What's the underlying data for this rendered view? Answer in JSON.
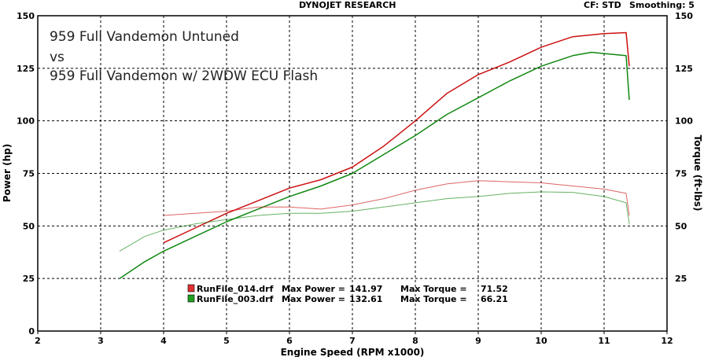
{
  "header": {
    "title": "DYNOJET RESEARCH",
    "cf_label": "CF: STD",
    "smoothing_label": "Smoothing: 5"
  },
  "chart_data": {
    "type": "line",
    "xlabel": "Engine Speed (RPM x1000)",
    "ylabel_left": "Power (hp)",
    "ylabel_right": "Torque (ft-lbs)",
    "xlim": [
      2,
      12
    ],
    "ylim": [
      0,
      150
    ],
    "x_ticks": [
      2,
      3,
      4,
      5,
      6,
      7,
      8,
      9,
      10,
      11,
      12
    ],
    "y_ticks": [
      0,
      25,
      50,
      75,
      100,
      125,
      150
    ],
    "y_ticks_right": [
      25,
      50,
      75,
      100,
      125,
      150
    ],
    "grid": true,
    "annotations": [
      "959 Full Vandemon Untuned",
      "vs",
      "959 Full Vandemon w/ 2WDW ECU Flash"
    ],
    "legend": [
      {
        "file": "RunFile_014.drf",
        "max_power_label": "Max Power =",
        "max_power": "141.97",
        "max_torque_label": "Max Torque =",
        "max_torque": "71.52",
        "color": "#cc1111"
      },
      {
        "file": "RunFile_003.drf",
        "max_power_label": "Max Power =",
        "max_power": "132.61",
        "max_torque_label": "Max Torque =",
        "max_torque": "66.21",
        "color": "#118811"
      }
    ],
    "series": [
      {
        "kind": "power",
        "run": 0,
        "color": "#cc1111",
        "x": [
          4.0,
          4.5,
          5.0,
          5.5,
          6.0,
          6.5,
          7.0,
          7.5,
          8.0,
          8.5,
          9.0,
          9.5,
          10.0,
          10.5,
          11.0,
          11.35,
          11.4
        ],
        "y": [
          42,
          49,
          56,
          62,
          68,
          72,
          78,
          88,
          100,
          113,
          122,
          128,
          135,
          140,
          141.5,
          141.97,
          126
        ]
      },
      {
        "kind": "power",
        "run": 1,
        "color": "#118811",
        "x": [
          3.3,
          3.7,
          4.0,
          4.5,
          5.0,
          5.5,
          6.0,
          6.5,
          7.0,
          7.5,
          8.0,
          8.5,
          9.0,
          9.5,
          10.0,
          10.5,
          10.8,
          11.0,
          11.35,
          11.4
        ],
        "y": [
          25,
          33,
          38,
          45,
          52,
          58,
          64,
          69,
          75,
          84,
          93,
          103,
          111,
          119,
          126,
          131,
          132.61,
          132,
          131,
          110
        ]
      },
      {
        "kind": "torque",
        "run": 0,
        "color": "#cc1111",
        "x": [
          4.0,
          4.5,
          5.0,
          5.5,
          6.0,
          6.5,
          7.0,
          7.5,
          8.0,
          8.5,
          9.0,
          9.5,
          10.0,
          10.5,
          11.0,
          11.35,
          11.4
        ],
        "y": [
          55,
          56,
          57,
          59,
          59,
          58,
          60,
          63,
          67,
          70,
          71.52,
          71,
          70.5,
          69,
          67.5,
          65.5,
          55
        ]
      },
      {
        "kind": "torque",
        "run": 1,
        "color": "#118811",
        "x": [
          3.3,
          3.7,
          4.0,
          4.5,
          5.0,
          5.5,
          6.0,
          6.5,
          7.0,
          7.5,
          8.0,
          8.5,
          9.0,
          9.5,
          10.0,
          10.5,
          11.0,
          11.35,
          11.4
        ],
        "y": [
          38,
          45,
          48,
          51,
          53,
          55,
          56,
          56,
          57,
          59,
          61,
          63,
          64,
          65.5,
          66.21,
          66,
          64,
          61,
          51
        ]
      }
    ]
  }
}
